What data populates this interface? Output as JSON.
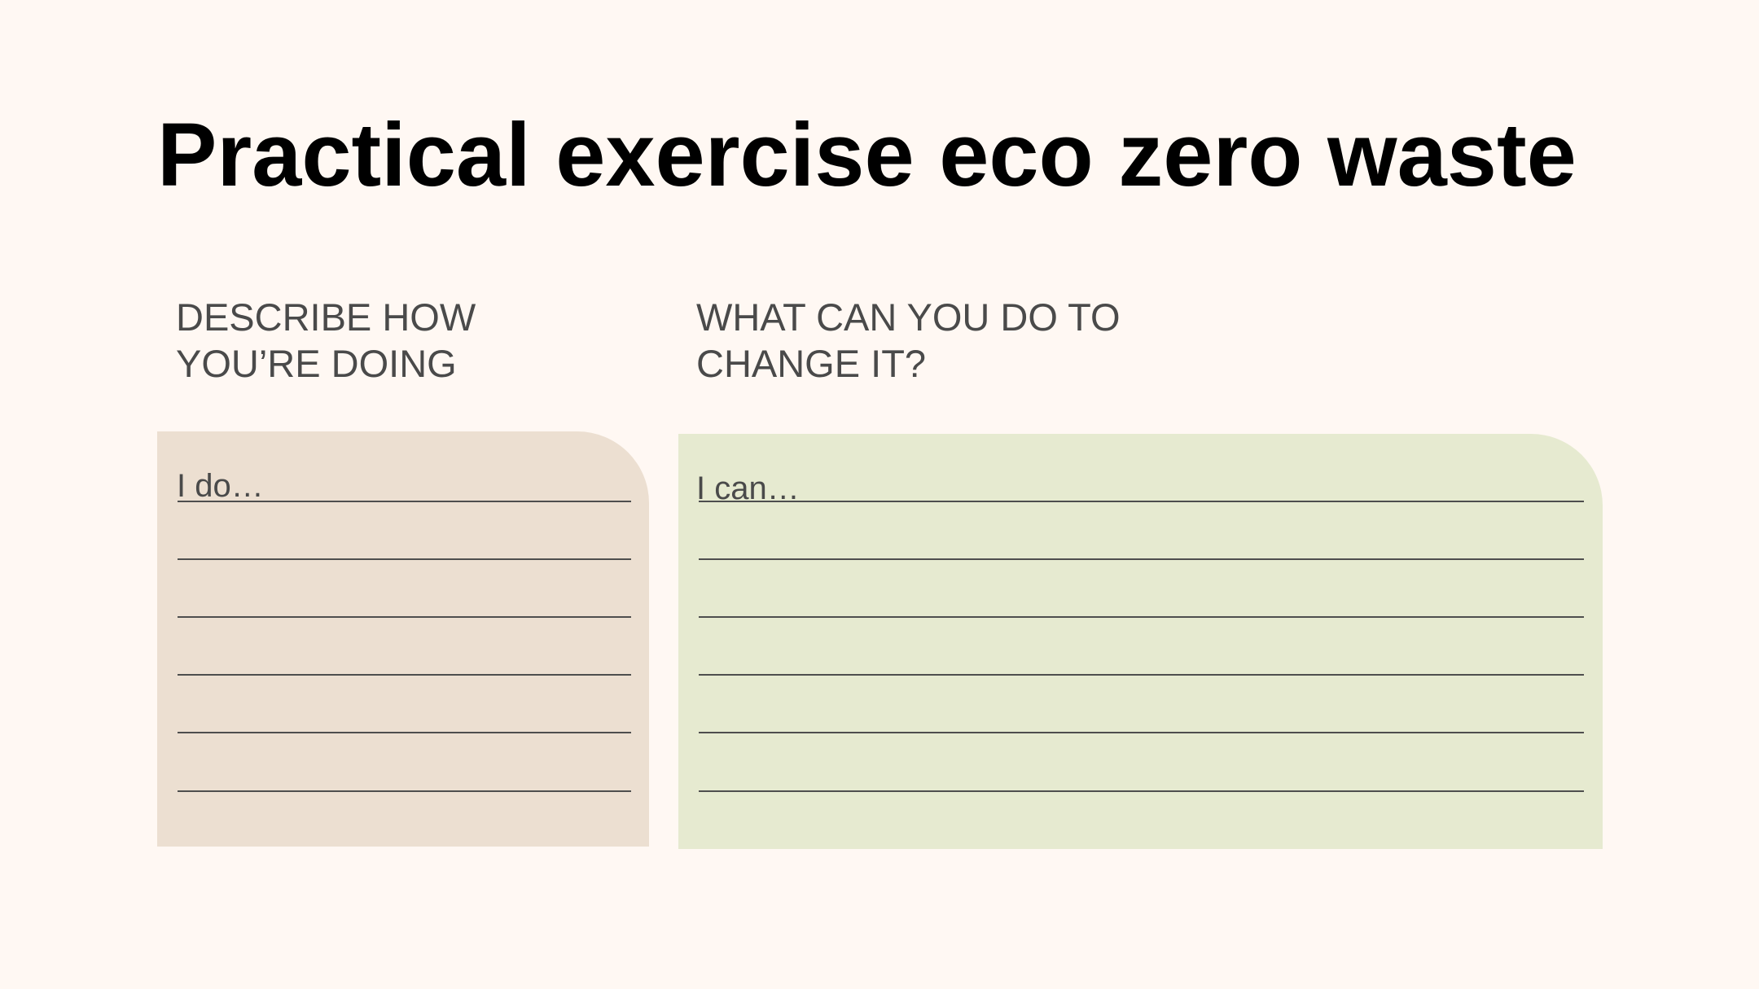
{
  "slide": {
    "title": "Practical exercise eco zero waste"
  },
  "columns": [
    {
      "heading_lines": [
        "DESCRIBE HOW",
        "YOU’RE DOING"
      ],
      "prefix": "I do…",
      "background": "#ecdfd1",
      "line_count": 6
    },
    {
      "heading_lines": [
        "WHAT CAN YOU DO TO",
        "CHANGE IT?"
      ],
      "prefix": "I can…",
      "background": "#e6ead0",
      "line_count": 6
    }
  ],
  "colors": {
    "page_background": "#fff8f3",
    "title_text": "#000000",
    "heading_text": "#4a4a4a",
    "rule_line": "#4e4e4e"
  }
}
